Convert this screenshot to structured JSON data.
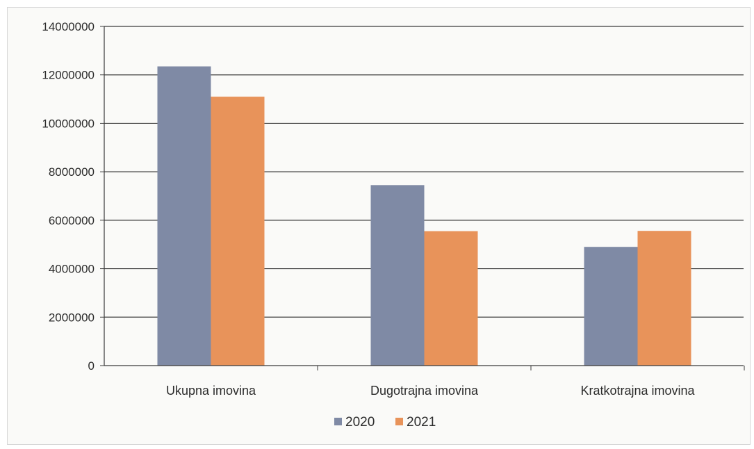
{
  "chart_data": {
    "type": "bar",
    "title": "",
    "xlabel": "",
    "ylabel": "",
    "categories": [
      "Ukupna imovina",
      "Dugotrajna imovina",
      "Kratkotrajna imovina"
    ],
    "series": [
      {
        "name": "2020",
        "values": [
          12350000,
          7450000,
          4900000
        ],
        "color": "#7f8aa5"
      },
      {
        "name": "2021",
        "values": [
          11100000,
          5550000,
          5560000
        ],
        "color": "#e8935a"
      }
    ],
    "ylim": [
      0,
      14000000
    ],
    "yticks": [
      0,
      2000000,
      4000000,
      6000000,
      8000000,
      10000000,
      12000000,
      14000000
    ],
    "ytick_labels": [
      "0",
      "2000000",
      "4000000",
      "6000000",
      "8000000",
      "10000000",
      "12000000",
      "14000000"
    ],
    "grid": true,
    "legend_position": "bottom"
  }
}
